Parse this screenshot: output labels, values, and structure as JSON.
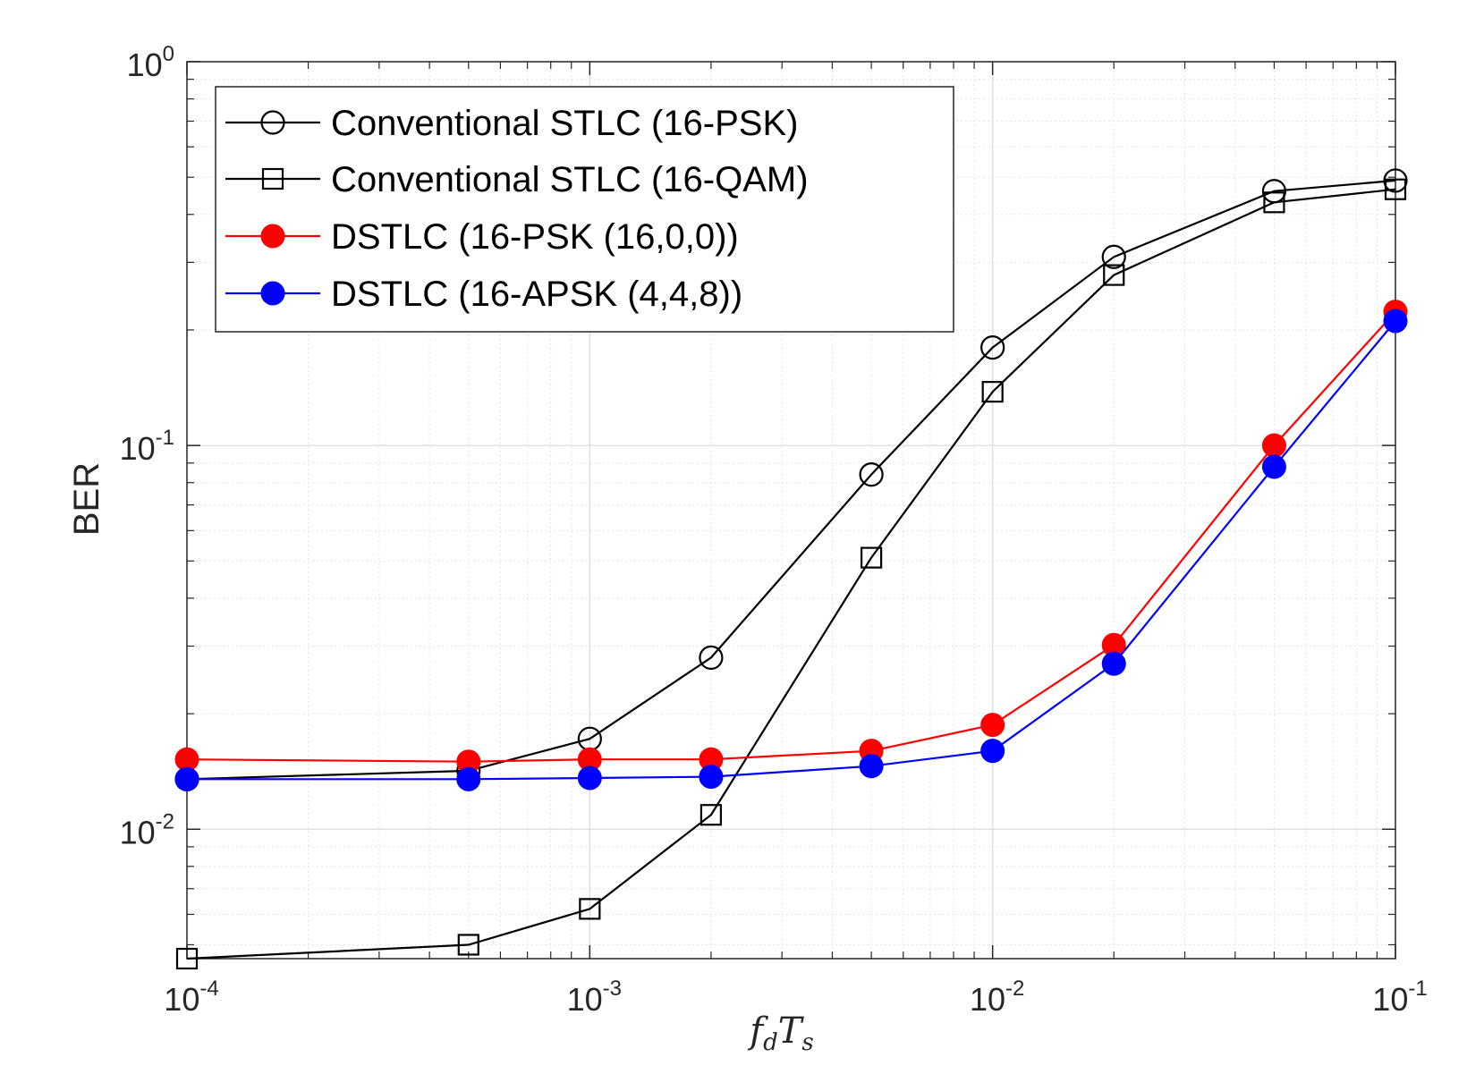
{
  "chart_data": {
    "type": "line",
    "xscale": "log",
    "yscale": "log",
    "xlim": [
      0.0001,
      0.1
    ],
    "ylim": [
      0.0046,
      1
    ],
    "grid": true,
    "legend_position": "top-left",
    "xlabel": {
      "main": "f",
      "sub": "d",
      "main2": "T",
      "sub2": "s"
    },
    "ylabel": "BER",
    "xticks": [
      {
        "value": 0.0001,
        "base": "10",
        "exp": "-4"
      },
      {
        "value": 0.001,
        "base": "10",
        "exp": "-3"
      },
      {
        "value": 0.01,
        "base": "10",
        "exp": "-2"
      },
      {
        "value": 0.1,
        "base": "10",
        "exp": "-1"
      }
    ],
    "yticks": [
      {
        "value": 0.01,
        "base": "10",
        "exp": "-2"
      },
      {
        "value": 0.1,
        "base": "10",
        "exp": "-1"
      },
      {
        "value": 1,
        "base": "10",
        "exp": "0"
      }
    ],
    "series": [
      {
        "name": "Conventional STLC (16-PSK)",
        "color": "#000000",
        "marker": "circle-open",
        "x": [
          0.0001,
          0.0005,
          0.001,
          0.002,
          0.005,
          0.01,
          0.02,
          0.05,
          0.1
        ],
        "y": [
          0.0135,
          0.0142,
          0.0172,
          0.028,
          0.084,
          0.18,
          0.31,
          0.46,
          0.49
        ]
      },
      {
        "name": "Conventional STLC (16-QAM)",
        "color": "#000000",
        "marker": "square-open",
        "x": [
          0.0001,
          0.0005,
          0.001,
          0.002,
          0.005,
          0.01,
          0.02,
          0.05,
          0.1
        ],
        "y": [
          0.0046,
          0.005,
          0.0062,
          0.0109,
          0.051,
          0.138,
          0.278,
          0.43,
          0.465
        ]
      },
      {
        "name": "DSTLC (16-PSK (16,0,0))",
        "color": "#ff0000",
        "marker": "circle-filled",
        "x": [
          0.0001,
          0.0005,
          0.001,
          0.002,
          0.005,
          0.01,
          0.02,
          0.05,
          0.1
        ],
        "y": [
          0.0152,
          0.015,
          0.0152,
          0.0152,
          0.016,
          0.0187,
          0.0302,
          0.1,
          0.223
        ]
      },
      {
        "name": "DSTLC (16-APSK (4,4,8))",
        "color": "#0000ff",
        "marker": "circle-filled",
        "x": [
          0.0001,
          0.0005,
          0.001,
          0.002,
          0.005,
          0.01,
          0.02,
          0.05,
          0.1
        ],
        "y": [
          0.0135,
          0.0135,
          0.0136,
          0.0137,
          0.0146,
          0.016,
          0.027,
          0.088,
          0.211
        ]
      }
    ]
  }
}
